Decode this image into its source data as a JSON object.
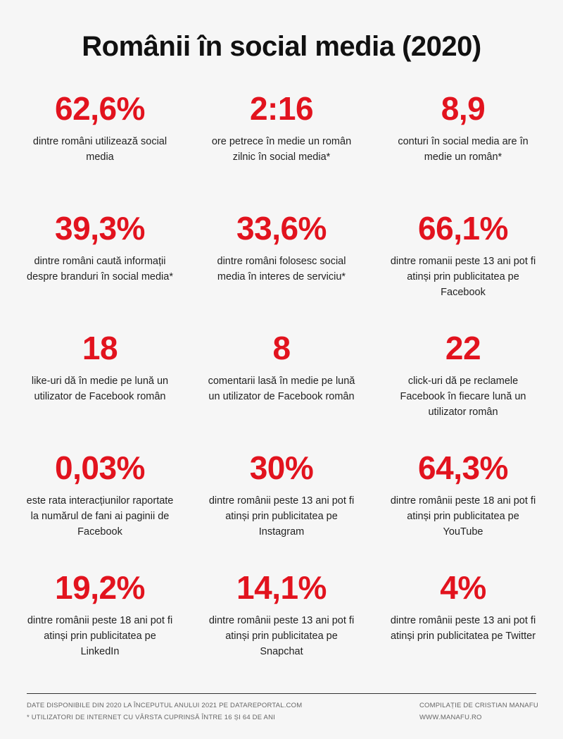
{
  "title": "Românii în social media (2020)",
  "stats": [
    {
      "value": "62,6%",
      "desc": "dintre români utilizează social media"
    },
    {
      "value": "2:16",
      "desc": "ore petrece în medie un român zilnic în social media*"
    },
    {
      "value": "8,9",
      "desc": "conturi în social media are în medie un român*"
    },
    {
      "value": "39,3%",
      "desc": "dintre români caută informații despre branduri în social media*"
    },
    {
      "value": "33,6%",
      "desc": "dintre români folosesc social media în interes de serviciu*"
    },
    {
      "value": "66,1%",
      "desc": "dintre romanii peste 13 ani pot fi atinși prin publicitatea pe Facebook"
    },
    {
      "value": "18",
      "desc": "like-uri dă în medie pe lună un utilizator de Facebook român"
    },
    {
      "value": "8",
      "desc": "comentarii lasă în medie pe lună un utilizator de Facebook român"
    },
    {
      "value": "22",
      "desc": "click-uri dă pe reclamele Facebook în fiecare lună un utilizator român"
    },
    {
      "value": "0,03%",
      "desc": "este rata interacțiunilor raportate la numărul de fani ai paginii de Facebook"
    },
    {
      "value": "30%",
      "desc": "dintre românii peste 13 ani pot fi atinși prin publicitatea pe Instagram"
    },
    {
      "value": "64,3%",
      "desc": "dintre românii peste 18 ani pot fi atinși prin publicitatea pe YouTube"
    },
    {
      "value": "19,2%",
      "desc": "dintre românii peste 18 ani pot fi atinși prin publicitatea pe LinkedIn"
    },
    {
      "value": "14,1%",
      "desc": "dintre românii peste 13 ani pot fi atinși prin publicitatea pe Snapchat"
    },
    {
      "value": "4%",
      "desc": "dintre românii peste 13 ani pot fi atinși prin publicitatea pe Twitter"
    }
  ],
  "footer": {
    "source": "Date disponibile din 2020 la începutul anului 2021 pe datareportal.com",
    "note": "* Utilizatori de internet cu vârsta cuprinsă între 16 și 64 de ani",
    "credit": "Compilație de Cristian Manafu",
    "website": "www.manafu.ro"
  },
  "colors": {
    "accent": "#e2131e",
    "background": "#f6f6f6",
    "text": "#222222"
  }
}
